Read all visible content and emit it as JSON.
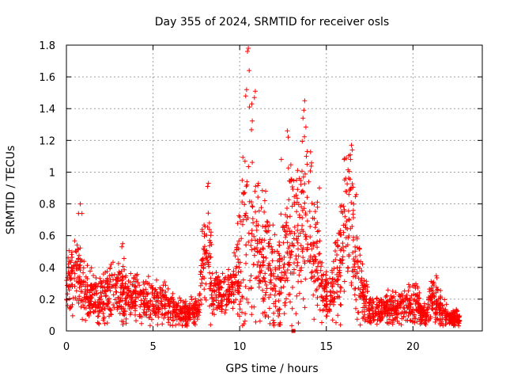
{
  "chart_data": {
    "type": "scatter",
    "title": "Day 355 of 2024, SRMTID for receiver osls",
    "xlabel": "GPS time / hours",
    "ylabel": "SRMTID / TECUs",
    "xlim": [
      0,
      24
    ],
    "ylim": [
      0,
      1.8
    ],
    "xticks": [
      "0",
      "5",
      "10",
      "15",
      "20"
    ],
    "yticks": [
      "0",
      "0.2",
      "0.4",
      "0.6",
      "0.8",
      "1",
      "1.2",
      "1.4",
      "1.6",
      "1.8"
    ],
    "grid": true,
    "marker": "+",
    "color": "#ff0000",
    "profile": [
      [
        0.0,
        0.28,
        0.1
      ],
      [
        0.3,
        0.34,
        0.12
      ],
      [
        0.6,
        0.4,
        0.16
      ],
      [
        0.9,
        0.32,
        0.12
      ],
      [
        1.3,
        0.22,
        0.1
      ],
      [
        1.8,
        0.2,
        0.1
      ],
      [
        2.3,
        0.24,
        0.1
      ],
      [
        2.8,
        0.25,
        0.12
      ],
      [
        3.3,
        0.24,
        0.12
      ],
      [
        3.8,
        0.21,
        0.1
      ],
      [
        4.3,
        0.2,
        0.1
      ],
      [
        4.8,
        0.19,
        0.09
      ],
      [
        5.3,
        0.18,
        0.09
      ],
      [
        5.8,
        0.17,
        0.07
      ],
      [
        6.3,
        0.12,
        0.05
      ],
      [
        6.8,
        0.1,
        0.05
      ],
      [
        7.2,
        0.14,
        0.05
      ],
      [
        7.6,
        0.13,
        0.05
      ],
      [
        7.9,
        0.4,
        0.2
      ],
      [
        8.2,
        0.45,
        0.2
      ],
      [
        8.5,
        0.26,
        0.08
      ],
      [
        9.0,
        0.24,
        0.08
      ],
      [
        9.5,
        0.23,
        0.09
      ],
      [
        10.0,
        0.4,
        0.2
      ],
      [
        10.3,
        0.7,
        0.45
      ],
      [
        10.6,
        0.6,
        0.4
      ],
      [
        11.0,
        0.5,
        0.3
      ],
      [
        11.5,
        0.42,
        0.25
      ],
      [
        12.0,
        0.32,
        0.2
      ],
      [
        12.5,
        0.35,
        0.25
      ],
      [
        12.9,
        0.55,
        0.3
      ],
      [
        13.3,
        0.5,
        0.35
      ],
      [
        13.7,
        0.7,
        0.35
      ],
      [
        14.1,
        0.6,
        0.35
      ],
      [
        14.5,
        0.4,
        0.25
      ],
      [
        14.9,
        0.25,
        0.1
      ],
      [
        15.3,
        0.22,
        0.1
      ],
      [
        15.7,
        0.35,
        0.2
      ],
      [
        16.1,
        0.7,
        0.3
      ],
      [
        16.4,
        0.75,
        0.3
      ],
      [
        16.8,
        0.4,
        0.2
      ],
      [
        17.2,
        0.2,
        0.1
      ],
      [
        17.7,
        0.12,
        0.05
      ],
      [
        18.2,
        0.13,
        0.06
      ],
      [
        18.7,
        0.14,
        0.06
      ],
      [
        19.2,
        0.15,
        0.06
      ],
      [
        19.7,
        0.15,
        0.08
      ],
      [
        20.2,
        0.18,
        0.08
      ],
      [
        20.7,
        0.09,
        0.04
      ],
      [
        21.2,
        0.2,
        0.1
      ],
      [
        21.7,
        0.12,
        0.06
      ],
      [
        22.2,
        0.07,
        0.03
      ],
      [
        22.7,
        0.08,
        0.04
      ]
    ],
    "highlights": [
      [
        10.5,
        1.78
      ],
      [
        10.45,
        1.76
      ],
      [
        10.55,
        1.64
      ],
      [
        10.4,
        1.52
      ],
      [
        10.35,
        1.48
      ],
      [
        10.9,
        1.51
      ],
      [
        10.85,
        1.47
      ],
      [
        10.7,
        1.43
      ],
      [
        13.75,
        1.45
      ],
      [
        13.7,
        1.39
      ],
      [
        13.65,
        1.34
      ],
      [
        12.75,
        1.26
      ],
      [
        12.8,
        1.22
      ],
      [
        13.9,
        1.13
      ],
      [
        13.85,
        1.1
      ],
      [
        16.45,
        1.17
      ],
      [
        16.5,
        1.14
      ],
      [
        16.4,
        1.08
      ],
      [
        8.2,
        0.93
      ],
      [
        8.15,
        0.91
      ],
      [
        0.8,
        0.8
      ],
      [
        0.7,
        0.74
      ],
      [
        0.9,
        0.74
      ],
      [
        3.2,
        0.53
      ],
      [
        3.25,
        0.55
      ],
      [
        12.4,
        1.08
      ],
      [
        14.6,
        0.9
      ],
      [
        11.5,
        0.88
      ],
      [
        11.45,
        0.82
      ]
    ],
    "square_points": [
      [
        13.1,
        0.0
      ]
    ]
  }
}
